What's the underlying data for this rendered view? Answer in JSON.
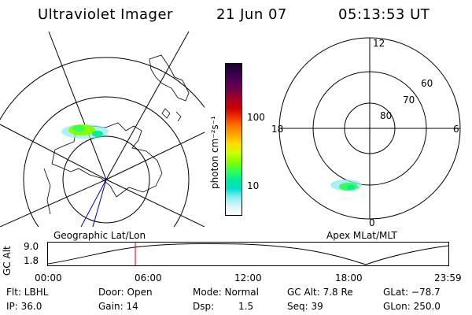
{
  "header": {
    "title": "Ultraviolet Imager",
    "date": "21 Jun 07",
    "time": "05:13:53 UT"
  },
  "geo_map": {
    "caption": "Geographic Lat/Lon"
  },
  "colorbar": {
    "label": "photon cm⁻²s⁻¹",
    "tick_100": "100",
    "tick_10": "10",
    "colors": [
      "#1a0033",
      "#330044",
      "#550055",
      "#770044",
      "#aa0022",
      "#cc0000",
      "#ee3300",
      "#ff7700",
      "#ffaa00",
      "#ffdd00",
      "#ccff00",
      "#88ff00",
      "#33ff55",
      "#00ee99",
      "#00ddcc",
      "#88eeee",
      "#ddf4f4",
      "#ffffff"
    ]
  },
  "polar_plot": {
    "caption": "Apex MLat/MLT",
    "mlt_12": "12",
    "mlt_18": "18",
    "mlt_6": "6",
    "mlt_0": "0",
    "lat_60": "60",
    "lat_70": "70",
    "lat_80": "80"
  },
  "altitude_plot": {
    "ylabel": "GC Alt",
    "ytick_top": "9.0",
    "ytick_bottom": "1.8",
    "xticks": [
      "00:00",
      "06:00",
      "12:00",
      "18:00",
      "23:59"
    ]
  },
  "info": {
    "filter": "Flt: LBHL",
    "door": "Door: Open",
    "mode": "Mode: Normal",
    "gc_alt": "GC Alt: 7.8 Re",
    "glat": "GLat: −78.7",
    "ip": "IP: 36.0",
    "gain": "Gain: 14",
    "dsp_label": "Dsp:",
    "dsp_value": "1.5",
    "seq": "Seq: 39",
    "glon": "GLon: 250.0"
  }
}
